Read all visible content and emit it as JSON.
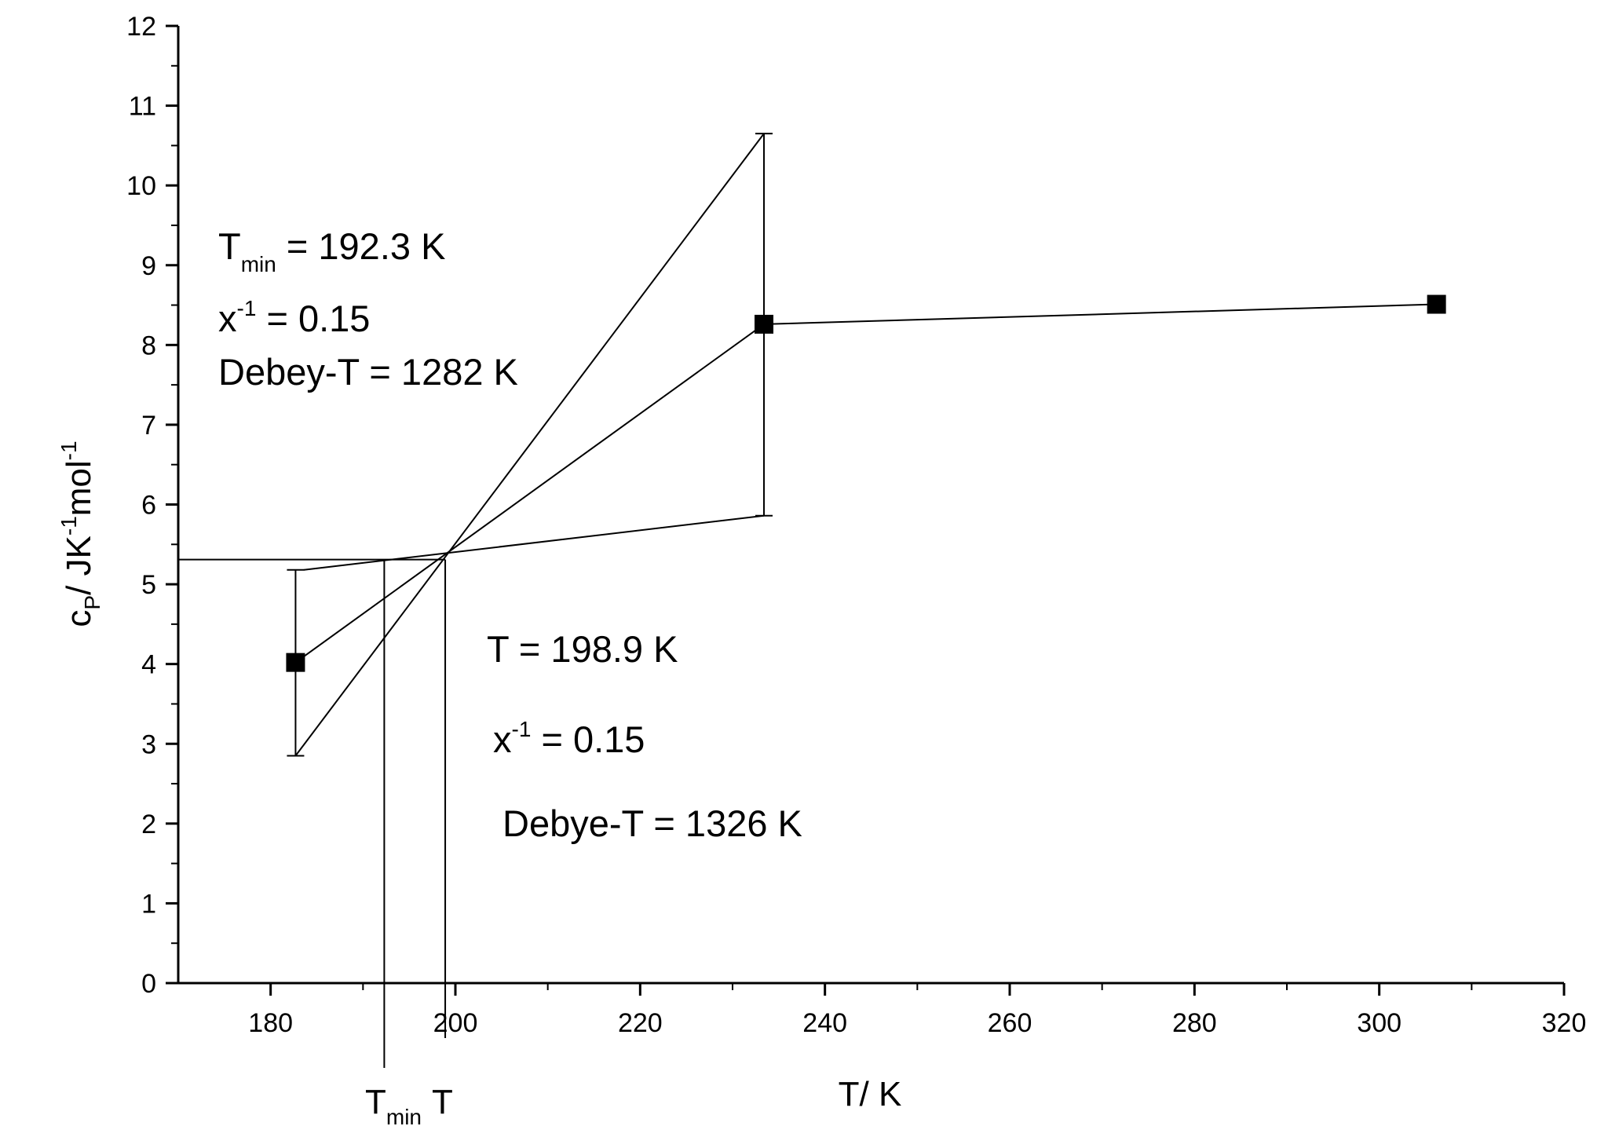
{
  "chart_data": {
    "type": "scatter",
    "xlabel": "T/ K",
    "ylabel": {
      "base": "c",
      "sub": "P",
      "unit_a": "/ JK",
      "sup_a": "-1",
      "unit_b": "mol",
      "sup_b": "-1"
    },
    "xlim": [
      170,
      320
    ],
    "ylim": [
      0,
      12
    ],
    "x_ticks": [
      "180",
      "200",
      "220",
      "240",
      "260",
      "280",
      "300",
      "320"
    ],
    "y_ticks": [
      "0",
      "1",
      "2",
      "3",
      "4",
      "5",
      "6",
      "7",
      "8",
      "9",
      "10",
      "11",
      "12"
    ],
    "grid": false,
    "legend": "none",
    "series": [
      {
        "points": [
          {
            "x": 182.7,
            "y": 4.02,
            "err_low": 2.85,
            "err_high": 5.18
          },
          {
            "x": 233.4,
            "y": 8.26,
            "err_low": 5.86,
            "err_high": 10.65
          },
          {
            "x": 306.2,
            "y": 8.51
          }
        ]
      }
    ],
    "construction_lines": [
      {
        "x1": 182.7,
        "y1": 4.02,
        "x2": 233.4,
        "y2": 8.26
      },
      {
        "x1": 182.7,
        "y1": 2.85,
        "x2": 233.4,
        "y2": 10.65
      },
      {
        "x1": 183.6,
        "y1": 5.18,
        "x2": 233.4,
        "y2": 5.86
      },
      {
        "x1": 233.4,
        "y1": 8.26,
        "x2": 306.2,
        "y2": 8.51
      }
    ],
    "reference_lines": {
      "horizontal_y": 5.31,
      "t_min": 192.3,
      "t": 198.9
    },
    "axis_markers": {
      "t_min": {
        "main": "T",
        "sub": "min"
      },
      "t": {
        "main": "T"
      }
    },
    "annotations": {
      "upper": {
        "line1": {
          "main": "T",
          "sub": "min",
          "rest": " = 192.3 K"
        },
        "line2": {
          "main": "x",
          "sup": "-1",
          "rest": " = 0.15"
        },
        "line3": "Debey-T = 1282 K"
      },
      "lower": {
        "line1": "T = 198.9 K",
        "line2": {
          "main": "x",
          "sup": "-1",
          "rest": " = 0.15"
        },
        "line3": "Debye-T = 1326 K"
      }
    }
  }
}
